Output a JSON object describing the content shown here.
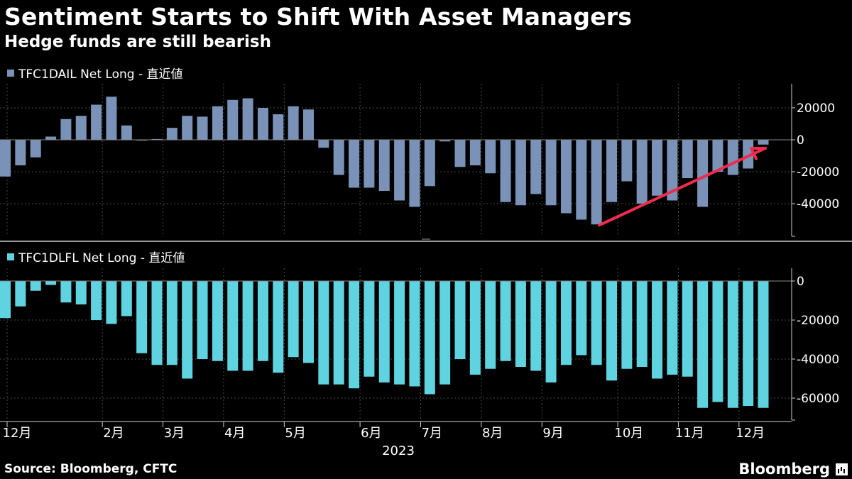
{
  "title": "Sentiment Starts to Shift With Asset Managers",
  "subtitle": "Hedge funds are still bearish",
  "source": "Source: Bloomberg, CFTC",
  "brand": "Bloomberg",
  "colors": {
    "background": "#000000",
    "series1": "#7a92b8",
    "series2": "#5fd3e0",
    "arrow": "#ee2c4d",
    "grid": "#4a4a4a",
    "text": "#ffffff"
  },
  "chart_data": [
    {
      "type": "bar",
      "title": "TFC1DAIL Net Long - 直近値",
      "legend": "TFC1DAIL Net Long - 直近値",
      "ylim": [
        -60000,
        35000
      ],
      "yticks": [
        20000,
        0,
        -20000,
        -40000
      ],
      "ytick_labels": [
        "20000",
        "0",
        "-20000",
        "-40000"
      ],
      "values": [
        -23000,
        -16000,
        -11000,
        2000,
        13000,
        15000,
        22000,
        27000,
        9000,
        -500,
        500,
        7500,
        15000,
        14500,
        21000,
        25000,
        26000,
        20000,
        16000,
        21000,
        19000,
        -5000,
        -22000,
        -30000,
        -30000,
        -32000,
        -38000,
        -42000,
        -29000,
        -1000,
        -17000,
        -16000,
        -21000,
        -39000,
        -41000,
        -34000,
        -41000,
        -46000,
        -50000,
        -53000,
        -39000,
        -26000,
        -40000,
        -35000,
        -38000,
        -24000,
        -42000,
        -20000,
        -22000,
        -18000,
        -3000
      ],
      "annotation": {
        "type": "arrow",
        "from": {
          "bar_index": 39,
          "value": -53000
        },
        "to": {
          "bar_index": 50,
          "value": -3500
        }
      }
    },
    {
      "type": "bar",
      "title": "TFC1DLFL Net Long - 直近値",
      "legend": "TFC1DLFL Net Long - 直近値",
      "ylim": [
        -70000,
        7000
      ],
      "yticks": [
        0,
        -20000,
        -40000,
        -60000
      ],
      "ytick_labels": [
        "0",
        "-20000",
        "-40000",
        "-60000"
      ],
      "values": [
        -19000,
        -13000,
        -5000,
        -2000,
        -11000,
        -12000,
        -20000,
        -22000,
        -18000,
        -37000,
        -43000,
        -43000,
        -50000,
        -40000,
        -41000,
        -46000,
        -46000,
        -41000,
        -47000,
        -39000,
        -42000,
        -53000,
        -53000,
        -55000,
        -49000,
        -52000,
        -53000,
        -54000,
        -58000,
        -53000,
        -40000,
        -48000,
        -45000,
        -41000,
        -44000,
        -46000,
        -52000,
        -43000,
        -38000,
        -43000,
        -51000,
        -45000,
        -44000,
        -50000,
        -48000,
        -49000,
        -65000,
        -62000,
        -65000,
        -64000,
        -65000
      ]
    }
  ],
  "x_axis": {
    "month_labels": [
      "12月",
      "2月",
      "3月",
      "4月",
      "5月",
      "6月",
      "7月",
      "8月",
      "9月",
      "10月",
      "11月",
      "12月"
    ],
    "month_bar_index": [
      0,
      7,
      11,
      15,
      19,
      24,
      28,
      32,
      36,
      41,
      45,
      49
    ],
    "year_label": "2023"
  }
}
